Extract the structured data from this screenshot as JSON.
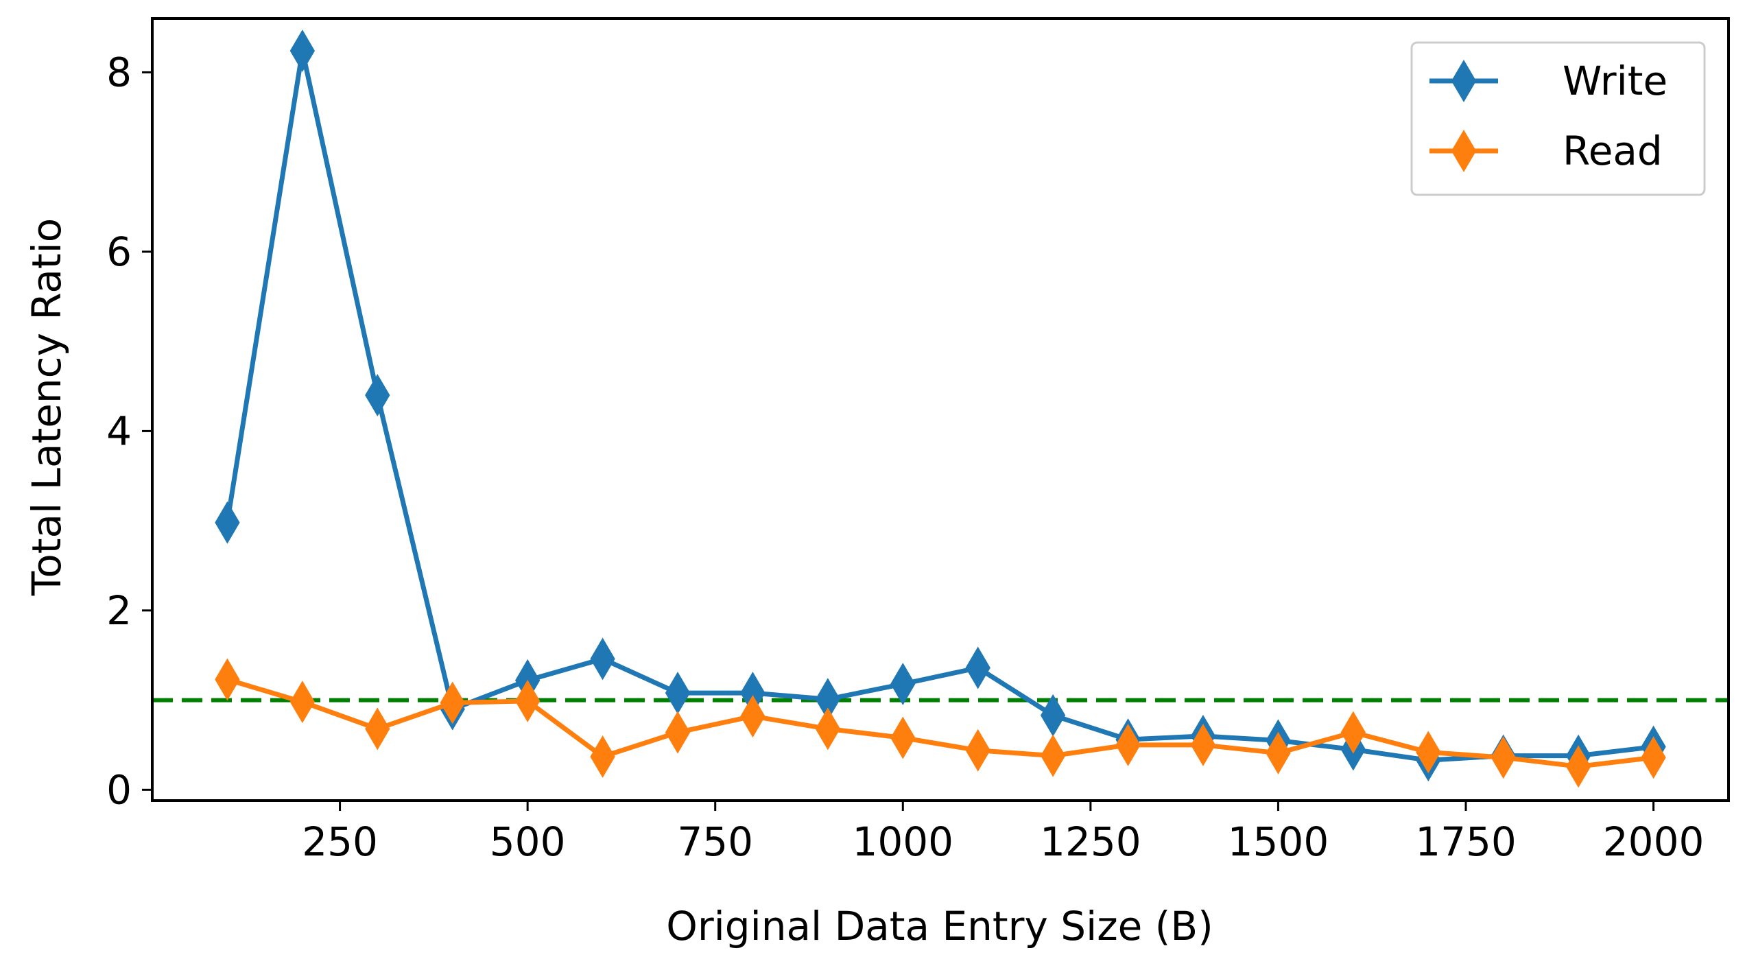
{
  "chart_data": {
    "type": "line",
    "title": "",
    "xlabel": "Original Data Entry Size (B)",
    "ylabel": "Total Latency Ratio",
    "xlim": [
      0,
      2100
    ],
    "ylim": [
      -0.12,
      8.6
    ],
    "xticks": [
      250,
      500,
      750,
      1000,
      1250,
      1500,
      1750,
      2000
    ],
    "xtick_labels": [
      "250",
      "500",
      "750",
      "1000",
      "1250",
      "1500",
      "1750",
      "2000"
    ],
    "yticks": [
      0,
      2,
      4,
      6,
      8
    ],
    "ytick_labels": [
      "0",
      "2",
      "4",
      "6",
      "8"
    ],
    "x": [
      100,
      200,
      300,
      400,
      500,
      600,
      700,
      800,
      900,
      1000,
      1100,
      1200,
      1300,
      1400,
      1500,
      1600,
      1700,
      1800,
      1900,
      2000
    ],
    "series": [
      {
        "name": "Write",
        "color": "#1f77b4",
        "marker": "thin-diamond",
        "values": [
          2.98,
          8.24,
          4.4,
          0.9,
          1.22,
          1.46,
          1.08,
          1.08,
          1.01,
          1.18,
          1.36,
          0.83,
          0.56,
          0.6,
          0.55,
          0.45,
          0.33,
          0.38,
          0.38,
          0.48
        ]
      },
      {
        "name": "Read",
        "color": "#ff7f0e",
        "marker": "thin-diamond",
        "values": [
          1.23,
          0.98,
          0.68,
          0.97,
          0.99,
          0.37,
          0.64,
          0.82,
          0.68,
          0.58,
          0.44,
          0.38,
          0.5,
          0.5,
          0.41,
          0.64,
          0.42,
          0.36,
          0.26,
          0.36
        ]
      }
    ],
    "reference_line": {
      "y": 1.0,
      "color": "#008000",
      "style": "dashed"
    },
    "grid": false,
    "legend": {
      "placement": "top-right",
      "entries": [
        "Write",
        "Read"
      ]
    }
  }
}
